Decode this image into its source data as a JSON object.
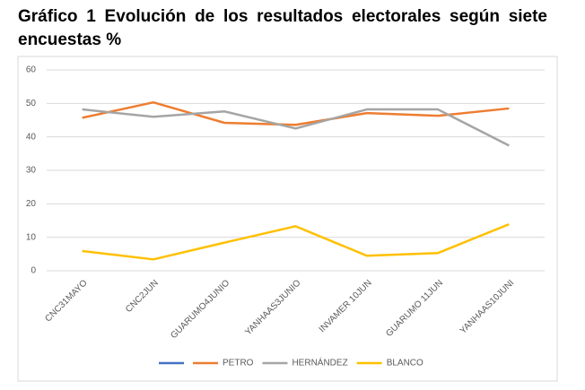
{
  "chart_data": {
    "type": "line",
    "title": "Gráfico 1 Evolución de los resultados electorales según siete encuestas %",
    "categories": [
      "CNC31MAYO",
      "CNC2JUN",
      "GUARUMO4JUNIO",
      "YANHAAS3JUNIO",
      "INVAMER 10JUN",
      "GUARUMO 11JUN",
      "YANHAAS10JUNI"
    ],
    "series": [
      {
        "name": null,
        "color": "#4472c4",
        "values": [
          null,
          null,
          null,
          null,
          null,
          null,
          null
        ]
      },
      {
        "name": "PETRO",
        "color": "#ed7d31",
        "values": [
          45.7,
          50.3,
          44.2,
          43.6,
          47.1,
          46.3,
          48.5
        ]
      },
      {
        "name": "HERNÁNDEZ",
        "color": "#a5a5a5",
        "values": [
          48.2,
          46,
          47.6,
          42.5,
          48.2,
          48.2,
          37.4
        ]
      },
      {
        "name": "BLANCO",
        "color": "#ffc000",
        "values": [
          5.9,
          3.4,
          8.4,
          13.3,
          4.5,
          5.3,
          13.9
        ]
      }
    ],
    "ylim": [
      0,
      60
    ],
    "yticks": [
      0,
      10,
      20,
      30,
      40,
      50,
      60
    ],
    "grid": true,
    "legend": "bottom"
  }
}
